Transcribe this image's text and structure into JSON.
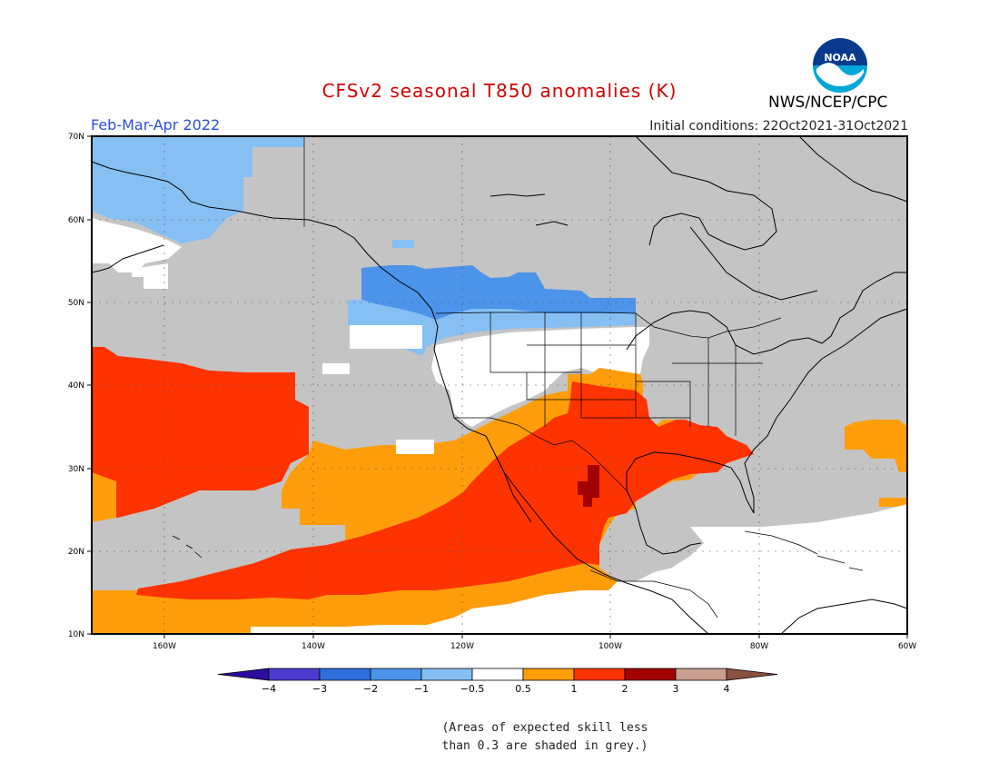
{
  "header": {
    "title": "CFSv2 seasonal T850 anomalies (K)",
    "season": "Feb-Mar-Apr 2022",
    "initial_conditions": "Initial conditions: 22Oct2021-31Oct2021",
    "agency": "NWS/NCEP/CPC",
    "logo_text": "NOAA"
  },
  "axes": {
    "lat_labels": [
      "70N",
      "60N",
      "50N",
      "40N",
      "30N",
      "20N",
      "10N"
    ],
    "lon_labels": [
      "160W",
      "140W",
      "120W",
      "100W",
      "80W",
      "60W"
    ]
  },
  "colorbar": {
    "labels": [
      "-4",
      "-3",
      "-2",
      "-1",
      "-0.5",
      "0.5",
      "1",
      "2",
      "3",
      "4"
    ],
    "colors": [
      "#2c0d9e",
      "#4b3bd0",
      "#2e6fdc",
      "#4b94ea",
      "#86bff2",
      "#ffffff",
      "#ff9e0a",
      "#ff3300",
      "#a30000",
      "#c9a090",
      "#8a5040"
    ],
    "grey": "#c4c4c4"
  },
  "note": {
    "line1": "(Areas of expected skill less",
    "line2": "than 0.3 are shaded in grey.)"
  }
}
